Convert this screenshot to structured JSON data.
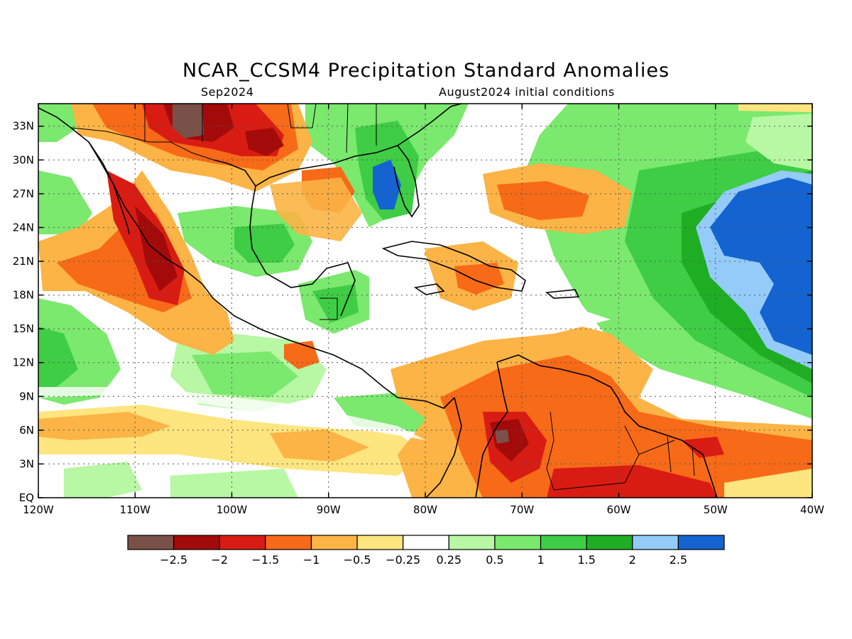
{
  "title": "NCAR_CCSM4 Precipitation Standard Anomalies",
  "subtitle_left": "Sep2024",
  "subtitle_right": "August2024 initial conditions",
  "map": {
    "lat_labels": [
      "33N",
      "30N",
      "27N",
      "24N",
      "21N",
      "18N",
      "15N",
      "12N",
      "9N",
      "6N",
      "3N",
      "EQ"
    ],
    "lat_values": [
      33,
      30,
      27,
      24,
      21,
      18,
      15,
      12,
      9,
      6,
      3,
      0
    ],
    "lon_labels": [
      "120W",
      "110W",
      "100W",
      "90W",
      "80W",
      "70W",
      "60W",
      "50W",
      "40W"
    ],
    "lon_values": [
      -120,
      -110,
      -100,
      -90,
      -80,
      -70,
      -60,
      -50,
      -40
    ],
    "lon_range": [
      -120,
      -40
    ],
    "lat_range": [
      0,
      35
    ],
    "gridlines": "dotted",
    "field": "precipitation standardized anomaly"
  },
  "colorbar": {
    "labels": [
      "-2.5",
      "-2",
      "-1.5",
      "-1",
      "-0.5",
      "-0.25",
      "0.25",
      "0.5",
      "1",
      "1.5",
      "2",
      "2.5"
    ],
    "colors": [
      "#7a5148",
      "#a30b0b",
      "#d91c13",
      "#f76a18",
      "#fbb445",
      "#fde580",
      "#ffffff",
      "#b8f7a4",
      "#7be86e",
      "#3ecd45",
      "#1fad24",
      "#94cbf8",
      "#1463d0"
    ]
  }
}
